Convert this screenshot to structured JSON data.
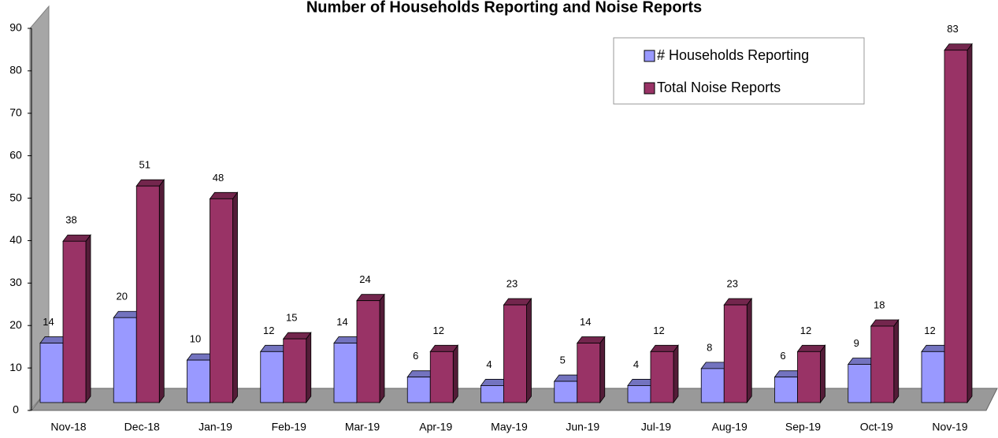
{
  "chart_data": {
    "type": "bar3d",
    "title": "Number of Households Reporting and Noise Reports",
    "categories": [
      "Nov-18",
      "Dec-18",
      "Jan-19",
      "Feb-19",
      "Mar-19",
      "Apr-19",
      "May-19",
      "Jun-19",
      "Jul-19",
      "Aug-19",
      "Sep-19",
      "Oct-19",
      "Nov-19"
    ],
    "series": [
      {
        "name": "# Households Reporting",
        "color": "#9999ff",
        "values": [
          14,
          20,
          10,
          12,
          14,
          6,
          4,
          5,
          4,
          8,
          6,
          9,
          12
        ]
      },
      {
        "name": "Total Noise Reports",
        "color": "#993366",
        "values": [
          38,
          51,
          48,
          15,
          24,
          12,
          23,
          14,
          12,
          23,
          12,
          18,
          83
        ]
      }
    ],
    "ylim": [
      0,
      90
    ],
    "yticks": [
      0,
      10,
      20,
      30,
      40,
      50,
      60,
      70,
      80,
      90
    ],
    "legend": "upper right"
  }
}
